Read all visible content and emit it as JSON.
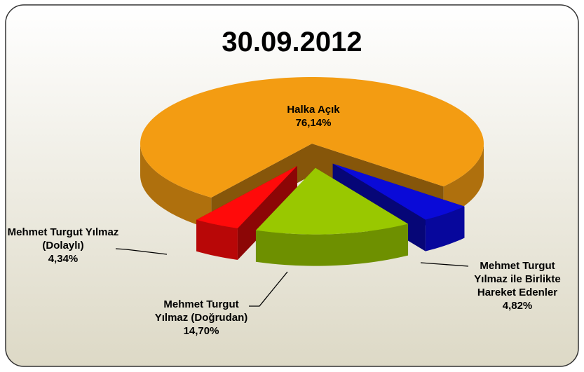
{
  "chart_data": {
    "type": "pie3d",
    "title": "30.09.2012",
    "categories": [
      "Halka Açık",
      "Mehmet Turgut Yılmaz ile Birlikte Hareket Edenler",
      "Mehmet Turgut Yılmaz (Doğrudan)",
      "Mehmet Turgut Yılmaz (Dolaylı)"
    ],
    "values": [
      76.14,
      4.82,
      14.7,
      4.34
    ],
    "value_labels": [
      "76,14%",
      "4,82%",
      "14,70%",
      "4,34%"
    ],
    "colors": [
      "#f39c12",
      "#0a0ad8",
      "#99c800",
      "#ff0a0a"
    ]
  }
}
